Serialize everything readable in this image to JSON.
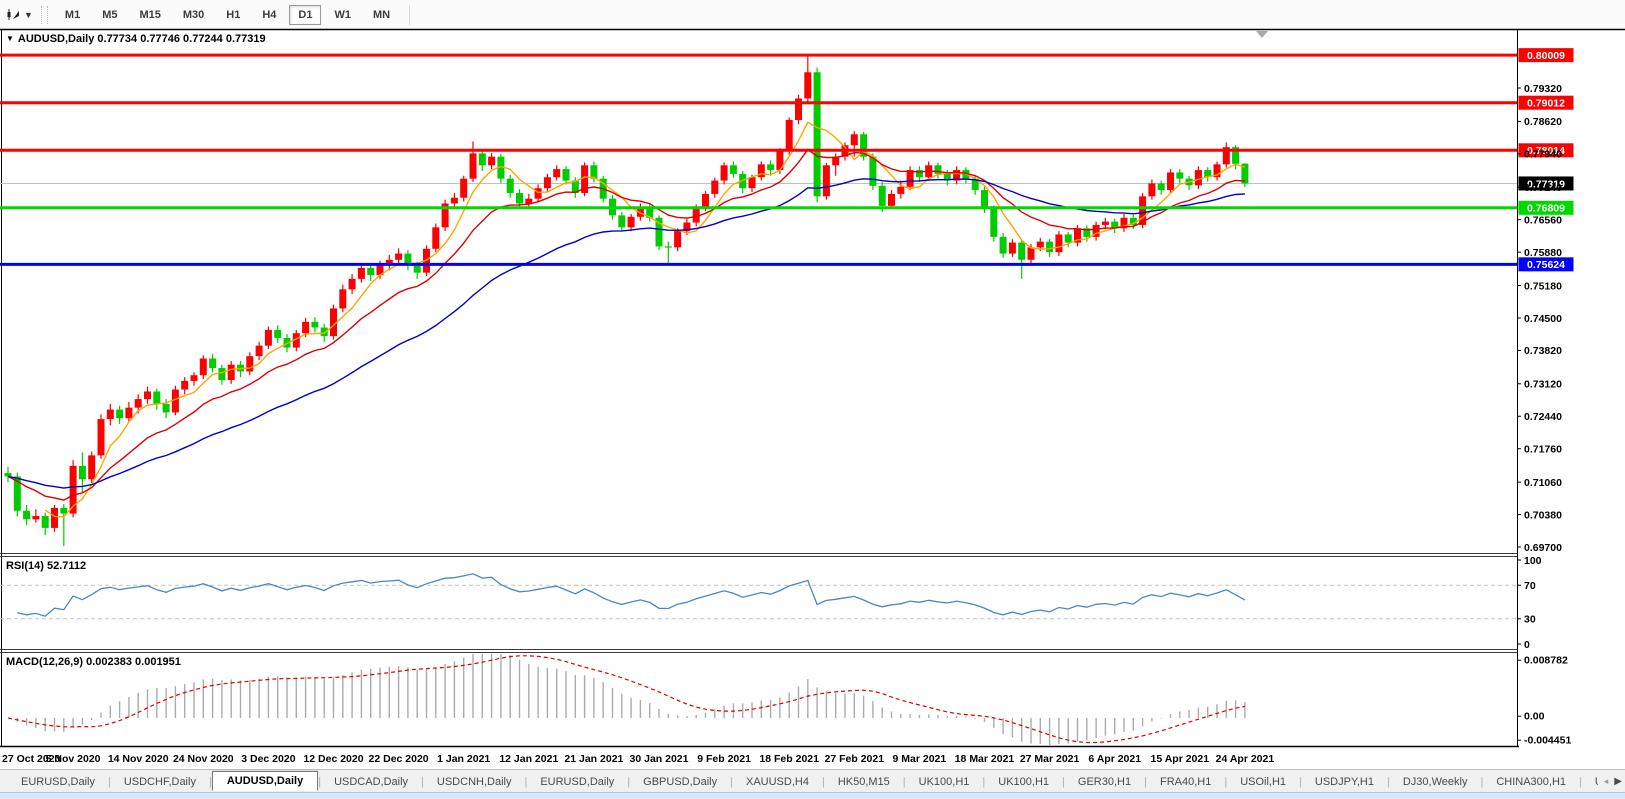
{
  "toolbar": {
    "tool_icon": "chart-crosshair",
    "dropdown_caret": "▼",
    "timeframes": [
      {
        "label": "M1",
        "active": false
      },
      {
        "label": "M5",
        "active": false
      },
      {
        "label": "M15",
        "active": false
      },
      {
        "label": "M30",
        "active": false
      },
      {
        "label": "H1",
        "active": false
      },
      {
        "label": "H4",
        "active": false
      },
      {
        "label": "D1",
        "active": true
      },
      {
        "label": "W1",
        "active": false
      },
      {
        "label": "MN",
        "active": false
      }
    ]
  },
  "main_pane": {
    "collapse_arrow": "▼",
    "title": "AUDUSD,Daily",
    "ohlc_text": "0.77734 0.77746 0.77244 0.77319",
    "open": "0.77734",
    "high": "0.77746",
    "low": "0.77244",
    "close": "0.77319",
    "scroll_marker": "▼"
  },
  "rsi_pane": {
    "title": "RSI(14)",
    "value": "52.7112",
    "axis_labels": [
      "100",
      "70",
      "30",
      "0"
    ],
    "upper_level": 70,
    "lower_level": 30,
    "line_color": "#4a86c8"
  },
  "macd_pane": {
    "title": "MACD(12,26,9)",
    "values": "0.002383 0.001951",
    "axis_labels": [
      "0.008782",
      "0.00",
      "-0.004451"
    ],
    "histogram_color": "#ababab",
    "signal_color": "#e00000"
  },
  "price_axis": {
    "ticks": [
      "0.79320",
      "0.78620",
      "0.77940",
      "0.77240",
      "0.76560",
      "0.75880",
      "0.75180",
      "0.74500",
      "0.73820",
      "0.73120",
      "0.72440",
      "0.71760",
      "0.71060",
      "0.70380",
      "0.69700"
    ]
  },
  "bottom_tabs": {
    "tabs": [
      {
        "label": "EURUSD,Daily",
        "active": false
      },
      {
        "label": "USDCHF,Daily",
        "active": false
      },
      {
        "label": "AUDUSD,Daily",
        "active": true
      },
      {
        "label": "USDCAD,Daily",
        "active": false
      },
      {
        "label": "USDCNH,Daily",
        "active": false
      },
      {
        "label": "EURUSD,Daily",
        "active": false
      },
      {
        "label": "GBPUSD,Daily",
        "active": false
      },
      {
        "label": "XAUUSD,H4",
        "active": false
      },
      {
        "label": "HK50,M15",
        "active": false
      },
      {
        "label": "UK100,H1",
        "active": false
      },
      {
        "label": "UK100,H1",
        "active": false
      },
      {
        "label": "GER30,H1",
        "active": false
      },
      {
        "label": "FRA40,H1",
        "active": false
      },
      {
        "label": "USOil,H1",
        "active": false
      },
      {
        "label": "USDJPY,H1",
        "active": false
      },
      {
        "label": "DJ30,Weekly",
        "active": false
      },
      {
        "label": "CHINA300,H1",
        "active": false
      },
      {
        "label": "U",
        "active": false
      }
    ],
    "scroll_left": "◂",
    "scroll_right": "▶"
  },
  "chart_data": {
    "type": "candlestick",
    "title": "AUDUSD,Daily",
    "symbol": "AUDUSD",
    "timeframe": "Daily",
    "bull_color": "#ff0000",
    "bear_color": "#00cc00",
    "note": "red = up candle, green = down candle (platform color scheme)",
    "x_labels": [
      "27 Oct 2020",
      "5 Nov 2020",
      "14 Nov 2020",
      "24 Nov 2020",
      "3 Dec 2020",
      "12 Dec 2020",
      "22 Dec 2020",
      "1 Jan 2021",
      "12 Jan 2021",
      "21 Jan 2021",
      "30 Jan 2021",
      "9 Feb 2021",
      "18 Feb 2021",
      "27 Feb 2021",
      "9 Mar 2021",
      "18 Mar 2021",
      "27 Mar 2021",
      "6 Apr 2021",
      "15 Apr 2021",
      "24 Apr 2021"
    ],
    "x_label_every": 7,
    "y_ticks": [
      0.7932,
      0.7862,
      0.7794,
      0.7724,
      0.7656,
      0.7588,
      0.7518,
      0.745,
      0.7382,
      0.7312,
      0.7244,
      0.7176,
      0.7106,
      0.7038,
      0.697
    ],
    "y_range_top": 0.80545,
    "y_range_bottom": 0.69595,
    "current_price": 0.77319,
    "current_price_label": "0.77319",
    "levels": [
      {
        "price": 0.80009,
        "label": "0.80009",
        "color": "#ff0000"
      },
      {
        "price": 0.79012,
        "label": "0.79012",
        "color": "#ff0000"
      },
      {
        "price": 0.78014,
        "label": "0.78014",
        "color": "#ff0000"
      },
      {
        "price": 0.76809,
        "label": "0.76809",
        "color": "#00d800"
      },
      {
        "price": 0.75624,
        "label": "0.75624",
        "color": "#0000ff"
      }
    ],
    "moving_averages": [
      {
        "name": "fast",
        "method": "sma",
        "period": 5,
        "color": "#ffa500"
      },
      {
        "name": "medium",
        "method": "ema",
        "period": 13,
        "color": "#dd0000"
      },
      {
        "name": "slow",
        "method": "ema",
        "period": 34,
        "color": "#0000cc"
      }
    ],
    "rsi": {
      "period": 14,
      "last_value": 52.7112
    },
    "macd": {
      "fast": 12,
      "slow": 26,
      "signal": 9,
      "last_main": 0.002383,
      "last_signal": 0.001951
    },
    "ohlc": [
      [
        0.7125,
        0.7138,
        0.7106,
        0.7118
      ],
      [
        0.7118,
        0.7126,
        0.7034,
        0.7046
      ],
      [
        0.7046,
        0.7058,
        0.7016,
        0.7028
      ],
      [
        0.7028,
        0.7049,
        0.7021,
        0.7035
      ],
      [
        0.7035,
        0.7042,
        0.6995,
        0.701
      ],
      [
        0.701,
        0.7058,
        0.7002,
        0.7052
      ],
      [
        0.7052,
        0.706,
        0.6972,
        0.704
      ],
      [
        0.704,
        0.7152,
        0.7032,
        0.714
      ],
      [
        0.714,
        0.7168,
        0.7085,
        0.7112
      ],
      [
        0.7112,
        0.717,
        0.7104,
        0.7162
      ],
      [
        0.7162,
        0.7248,
        0.7155,
        0.7238
      ],
      [
        0.7238,
        0.727,
        0.7225,
        0.7258
      ],
      [
        0.7258,
        0.7266,
        0.7228,
        0.724
      ],
      [
        0.724,
        0.7274,
        0.7232,
        0.7262
      ],
      [
        0.7262,
        0.729,
        0.725,
        0.728
      ],
      [
        0.728,
        0.7306,
        0.727,
        0.7296
      ],
      [
        0.7296,
        0.7302,
        0.7258,
        0.727
      ],
      [
        0.727,
        0.728,
        0.724,
        0.7252
      ],
      [
        0.7252,
        0.7308,
        0.7246,
        0.73
      ],
      [
        0.73,
        0.7326,
        0.729,
        0.7318
      ],
      [
        0.7318,
        0.7336,
        0.7308,
        0.733
      ],
      [
        0.733,
        0.7372,
        0.7322,
        0.7365
      ],
      [
        0.7365,
        0.7374,
        0.7336,
        0.7345
      ],
      [
        0.7345,
        0.7352,
        0.731,
        0.732
      ],
      [
        0.732,
        0.736,
        0.7312,
        0.7352
      ],
      [
        0.7352,
        0.736,
        0.7326,
        0.7338
      ],
      [
        0.7338,
        0.7378,
        0.733,
        0.737
      ],
      [
        0.737,
        0.74,
        0.7362,
        0.7392
      ],
      [
        0.7392,
        0.7432,
        0.7385,
        0.7425
      ],
      [
        0.7425,
        0.7435,
        0.7398,
        0.7408
      ],
      [
        0.7408,
        0.7416,
        0.7378,
        0.7388
      ],
      [
        0.7388,
        0.7425,
        0.738,
        0.7418
      ],
      [
        0.7418,
        0.745,
        0.741,
        0.7442
      ],
      [
        0.7442,
        0.7452,
        0.742,
        0.743
      ],
      [
        0.743,
        0.7438,
        0.74,
        0.7412
      ],
      [
        0.7412,
        0.7478,
        0.7405,
        0.747
      ],
      [
        0.747,
        0.752,
        0.7462,
        0.751
      ],
      [
        0.751,
        0.7542,
        0.75,
        0.7532
      ],
      [
        0.7532,
        0.7564,
        0.7524,
        0.7555
      ],
      [
        0.7555,
        0.7562,
        0.7528,
        0.754
      ],
      [
        0.754,
        0.757,
        0.7532,
        0.7562
      ],
      [
        0.7562,
        0.7582,
        0.755,
        0.7572
      ],
      [
        0.7572,
        0.7596,
        0.7562,
        0.7585
      ],
      [
        0.7585,
        0.7592,
        0.755,
        0.756
      ],
      [
        0.756,
        0.7568,
        0.7532,
        0.7545
      ],
      [
        0.7545,
        0.7602,
        0.7538,
        0.7595
      ],
      [
        0.7595,
        0.7648,
        0.7588,
        0.764
      ],
      [
        0.764,
        0.7698,
        0.7632,
        0.769
      ],
      [
        0.769,
        0.7712,
        0.768,
        0.7702
      ],
      [
        0.7702,
        0.7748,
        0.7694,
        0.7742
      ],
      [
        0.7742,
        0.782,
        0.7735,
        0.7795
      ],
      [
        0.7795,
        0.7802,
        0.7758,
        0.777
      ],
      [
        0.777,
        0.7796,
        0.7762,
        0.7788
      ],
      [
        0.7788,
        0.7794,
        0.7732,
        0.7742
      ],
      [
        0.7742,
        0.775,
        0.7702,
        0.7712
      ],
      [
        0.7712,
        0.772,
        0.7678,
        0.769
      ],
      [
        0.769,
        0.771,
        0.7682,
        0.77
      ],
      [
        0.77,
        0.773,
        0.7692,
        0.7722
      ],
      [
        0.7722,
        0.7752,
        0.7714,
        0.7745
      ],
      [
        0.7745,
        0.777,
        0.7738,
        0.7762
      ],
      [
        0.7762,
        0.7768,
        0.773,
        0.7738
      ],
      [
        0.7738,
        0.7745,
        0.7702,
        0.7712
      ],
      [
        0.7712,
        0.7776,
        0.7705,
        0.777
      ],
      [
        0.777,
        0.7778,
        0.7734,
        0.7742
      ],
      [
        0.7742,
        0.7748,
        0.7692,
        0.77
      ],
      [
        0.77,
        0.7708,
        0.7656,
        0.7665
      ],
      [
        0.7665,
        0.7672,
        0.7632,
        0.764
      ],
      [
        0.764,
        0.7668,
        0.7632,
        0.7662
      ],
      [
        0.7662,
        0.769,
        0.7654,
        0.7682
      ],
      [
        0.7682,
        0.7688,
        0.7652,
        0.766
      ],
      [
        0.766,
        0.7665,
        0.7592,
        0.76
      ],
      [
        0.76,
        0.761,
        0.7564,
        0.7598
      ],
      [
        0.7598,
        0.7638,
        0.759,
        0.7632
      ],
      [
        0.7632,
        0.7658,
        0.7624,
        0.765
      ],
      [
        0.765,
        0.7688,
        0.7642,
        0.7682
      ],
      [
        0.7682,
        0.7716,
        0.7674,
        0.771
      ],
      [
        0.771,
        0.7744,
        0.7702,
        0.7738
      ],
      [
        0.7738,
        0.7776,
        0.773,
        0.777
      ],
      [
        0.777,
        0.7778,
        0.7744,
        0.7752
      ],
      [
        0.7752,
        0.7758,
        0.7712,
        0.7722
      ],
      [
        0.7722,
        0.775,
        0.7714,
        0.7745
      ],
      [
        0.7745,
        0.7778,
        0.7738,
        0.7772
      ],
      [
        0.7772,
        0.778,
        0.7748,
        0.776
      ],
      [
        0.776,
        0.7806,
        0.7752,
        0.78
      ],
      [
        0.78,
        0.787,
        0.7792,
        0.7865
      ],
      [
        0.7865,
        0.7918,
        0.7856,
        0.791
      ],
      [
        0.791,
        0.80009,
        0.79,
        0.7965
      ],
      [
        0.7965,
        0.7975,
        0.7692,
        0.7705
      ],
      [
        0.7705,
        0.7775,
        0.7698,
        0.777
      ],
      [
        0.777,
        0.7795,
        0.7748,
        0.7788
      ],
      [
        0.7788,
        0.7818,
        0.778,
        0.7812
      ],
      [
        0.7812,
        0.7842,
        0.7788,
        0.7835
      ],
      [
        0.7835,
        0.784,
        0.778,
        0.7788
      ],
      [
        0.7788,
        0.7795,
        0.7718,
        0.7727
      ],
      [
        0.7727,
        0.7735,
        0.7672,
        0.7685
      ],
      [
        0.7685,
        0.7718,
        0.7678,
        0.771
      ],
      [
        0.771,
        0.7738,
        0.77,
        0.7725
      ],
      [
        0.7725,
        0.7768,
        0.7718,
        0.776
      ],
      [
        0.776,
        0.7768,
        0.7735,
        0.7745
      ],
      [
        0.7745,
        0.7778,
        0.7738,
        0.777
      ],
      [
        0.777,
        0.7776,
        0.7742,
        0.7752
      ],
      [
        0.7752,
        0.776,
        0.7728,
        0.7738
      ],
      [
        0.7738,
        0.7768,
        0.773,
        0.776
      ],
      [
        0.776,
        0.7766,
        0.7732,
        0.7742
      ],
      [
        0.7742,
        0.7748,
        0.7708,
        0.7718
      ],
      [
        0.7718,
        0.7725,
        0.767,
        0.768
      ],
      [
        0.768,
        0.7686,
        0.761,
        0.762
      ],
      [
        0.762,
        0.7628,
        0.7576,
        0.7585
      ],
      [
        0.7585,
        0.7615,
        0.7578,
        0.7608
      ],
      [
        0.7608,
        0.7612,
        0.7532,
        0.7572
      ],
      [
        0.7572,
        0.7605,
        0.7565,
        0.7598
      ],
      [
        0.7598,
        0.7618,
        0.759,
        0.761
      ],
      [
        0.761,
        0.7616,
        0.7578,
        0.7588
      ],
      [
        0.7588,
        0.7632,
        0.758,
        0.7625
      ],
      [
        0.7625,
        0.763,
        0.7598,
        0.7608
      ],
      [
        0.7608,
        0.7645,
        0.76,
        0.7638
      ],
      [
        0.7638,
        0.7644,
        0.761,
        0.762
      ],
      [
        0.762,
        0.7652,
        0.7612,
        0.7645
      ],
      [
        0.7645,
        0.766,
        0.7636,
        0.7652
      ],
      [
        0.7652,
        0.7658,
        0.7628,
        0.7638
      ],
      [
        0.7638,
        0.7668,
        0.763,
        0.766
      ],
      [
        0.766,
        0.7666,
        0.7636,
        0.7645
      ],
      [
        0.7645,
        0.7712,
        0.7638,
        0.7705
      ],
      [
        0.7705,
        0.774,
        0.7698,
        0.7732
      ],
      [
        0.7732,
        0.7738,
        0.7708,
        0.7718
      ],
      [
        0.7718,
        0.7762,
        0.771,
        0.7755
      ],
      [
        0.7755,
        0.7762,
        0.7732,
        0.7742
      ],
      [
        0.7742,
        0.7748,
        0.7718,
        0.7728
      ],
      [
        0.7728,
        0.7768,
        0.772,
        0.776
      ],
      [
        0.776,
        0.7766,
        0.7736,
        0.7745
      ],
      [
        0.7745,
        0.7778,
        0.7738,
        0.7772
      ],
      [
        0.7772,
        0.7818,
        0.7765,
        0.7808
      ],
      [
        0.7808,
        0.7812,
        0.7762,
        0.7773
      ],
      [
        0.77734,
        0.77746,
        0.77244,
        0.77319
      ]
    ]
  }
}
